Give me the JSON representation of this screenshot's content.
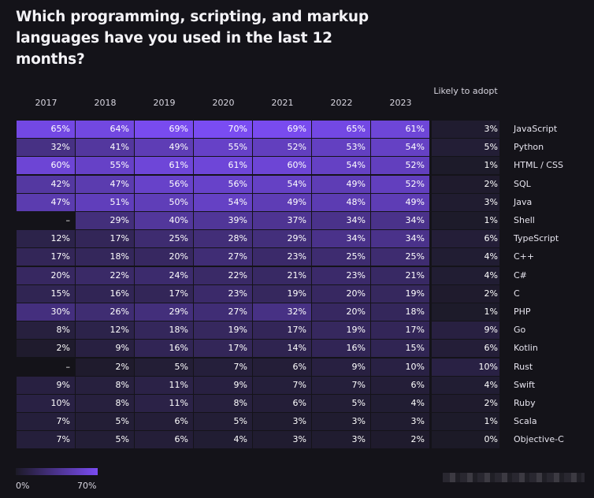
{
  "title": "Which programming, scripting, and markup languages have you used in the last 12 months?",
  "legend": {
    "min_label": "0%",
    "max_label": "70%"
  },
  "colors": {
    "background": "#141319",
    "low": "#1c1a27",
    "high": "#7a4cf2"
  },
  "chart_data": {
    "type": "heatmap",
    "value_range": [
      0,
      70
    ],
    "unit": "%",
    "columns": [
      "2017",
      "2018",
      "2019",
      "2020",
      "2021",
      "2022",
      "2023"
    ],
    "adopt_header": "Likely to adopt",
    "rows": [
      {
        "lang": "JavaScript",
        "values": [
          65,
          64,
          69,
          70,
          69,
          65,
          61
        ],
        "adopt": 3
      },
      {
        "lang": "Python",
        "values": [
          32,
          41,
          49,
          55,
          52,
          53,
          54
        ],
        "adopt": 5
      },
      {
        "lang": "HTML / CSS",
        "values": [
          60,
          55,
          61,
          61,
          60,
          54,
          52
        ],
        "adopt": 1
      },
      {
        "lang": "SQL",
        "values": [
          42,
          47,
          56,
          56,
          54,
          49,
          52
        ],
        "adopt": 2
      },
      {
        "lang": "Java",
        "values": [
          47,
          51,
          50,
          54,
          49,
          48,
          49
        ],
        "adopt": 3
      },
      {
        "lang": "Shell",
        "values": [
          null,
          29,
          40,
          39,
          37,
          34,
          34
        ],
        "adopt": 1
      },
      {
        "lang": "TypeScript",
        "values": [
          12,
          17,
          25,
          28,
          29,
          34,
          34
        ],
        "adopt": 6
      },
      {
        "lang": "C++",
        "values": [
          17,
          18,
          20,
          27,
          23,
          25,
          25
        ],
        "adopt": 4
      },
      {
        "lang": "C#",
        "values": [
          20,
          22,
          24,
          22,
          21,
          23,
          21
        ],
        "adopt": 4
      },
      {
        "lang": "C",
        "values": [
          15,
          16,
          17,
          23,
          19,
          20,
          19
        ],
        "adopt": 2
      },
      {
        "lang": "PHP",
        "values": [
          30,
          26,
          29,
          27,
          32,
          20,
          18
        ],
        "adopt": 1
      },
      {
        "lang": "Go",
        "values": [
          8,
          12,
          18,
          19,
          17,
          19,
          17
        ],
        "adopt": 9
      },
      {
        "lang": "Kotlin",
        "values": [
          2,
          9,
          16,
          17,
          14,
          16,
          15
        ],
        "adopt": 6
      },
      {
        "lang": "Rust",
        "values": [
          null,
          2,
          5,
          7,
          6,
          9,
          10
        ],
        "adopt": 10
      },
      {
        "lang": "Swift",
        "values": [
          9,
          8,
          11,
          9,
          7,
          7,
          6
        ],
        "adopt": 4
      },
      {
        "lang": "Ruby",
        "values": [
          10,
          8,
          11,
          8,
          6,
          5,
          4
        ],
        "adopt": 2
      },
      {
        "lang": "Scala",
        "values": [
          7,
          5,
          6,
          5,
          3,
          3,
          3
        ],
        "adopt": 1
      },
      {
        "lang": "Objective-C",
        "values": [
          7,
          5,
          6,
          4,
          3,
          3,
          2
        ],
        "adopt": 0
      }
    ],
    "missing_label": "–"
  }
}
